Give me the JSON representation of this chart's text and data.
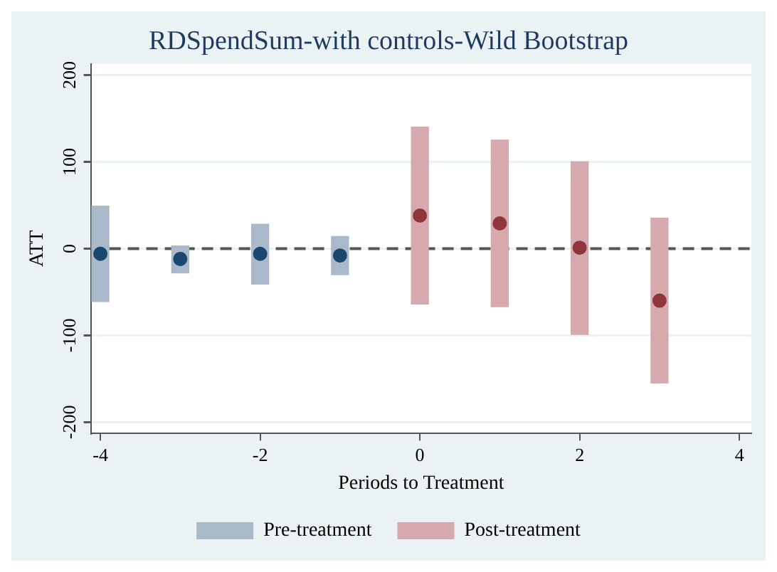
{
  "chart_data": {
    "type": "bar",
    "title": "RDSpendSum-with controls-Wild Bootstrap",
    "xlabel": "Periods to Treatment",
    "ylabel": "ATT",
    "series": [
      {
        "name": "Pre-treatment",
        "color": "#a9b9c9",
        "x": [
          -4,
          -3,
          -2,
          -1
        ],
        "base": [
          -61,
          -28,
          -41,
          -30
        ],
        "values": [
          110,
          31,
          69,
          44
        ]
      },
      {
        "name": "Post-treatment",
        "color": "#d5a9ae",
        "x": [
          0,
          1,
          2,
          3
        ],
        "base": [
          -64,
          -67,
          -99,
          -155
        ],
        "values": [
          204,
          192,
          199,
          190
        ]
      },
      {
        "type": "scatter",
        "color": "#1a476f",
        "x": [
          -4,
          -3,
          -2,
          -1
        ],
        "values": [
          -6,
          -12,
          -6,
          -8
        ]
      },
      {
        "type": "scatter",
        "color": "#90353b",
        "x": [
          0,
          1,
          2,
          3
        ],
        "values": [
          38,
          29,
          1,
          -60
        ]
      }
    ],
    "xlim": [
      -4.12,
      4.15
    ],
    "xticks": [
      -4,
      -2,
      0,
      2,
      4
    ],
    "ylim": [
      -213,
      213
    ],
    "yticks": [
      -200,
      -100,
      0,
      100,
      200
    ],
    "ref_lines": [
      {
        "axis": "y",
        "value": 0,
        "color": "#555555",
        "line_style": "dashed"
      }
    ],
    "grid": "y",
    "legend": "bottom",
    "marker": "circle"
  }
}
